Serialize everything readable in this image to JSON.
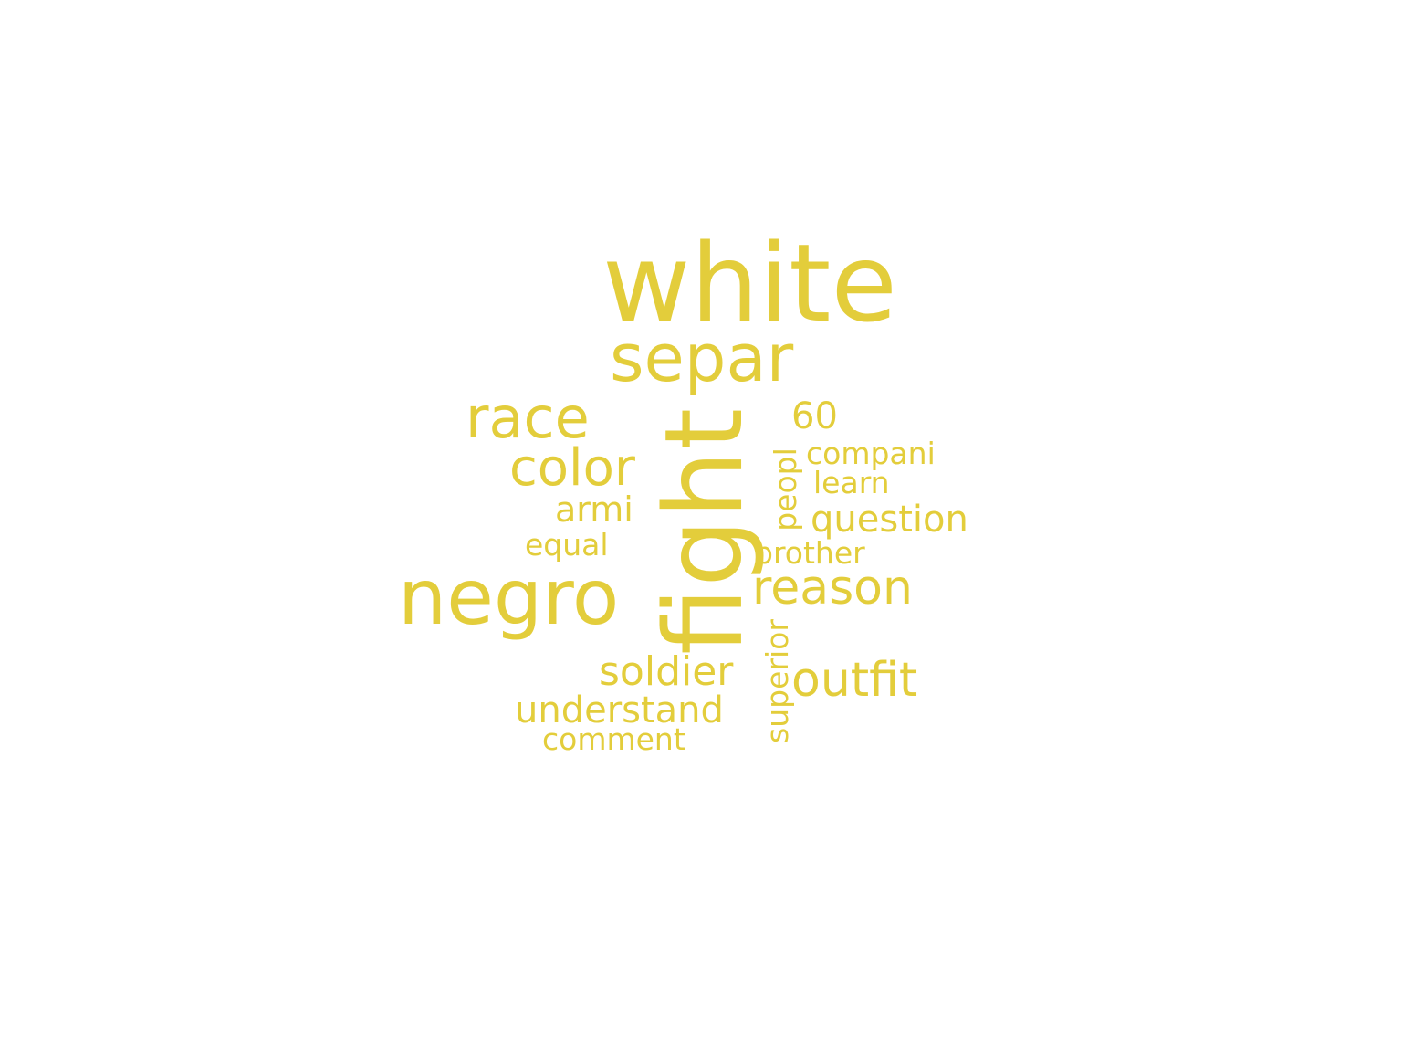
{
  "color": "#e3cd3b",
  "background": "#ffffff",
  "words": {
    "white": "white",
    "separ": "separ",
    "race": "race",
    "fight": "fight",
    "sixty": "60",
    "companies": "compani",
    "color": "color",
    "peopl": "peopl",
    "learn": "learn",
    "armi": "armi",
    "question": "question",
    "equal": "equal",
    "brother": "brother",
    "reason": "reason",
    "negro": "negro",
    "soldier": "soldier",
    "outfit": "outfit",
    "understand": "understand",
    "superior": "superior",
    "comment": "comment"
  }
}
